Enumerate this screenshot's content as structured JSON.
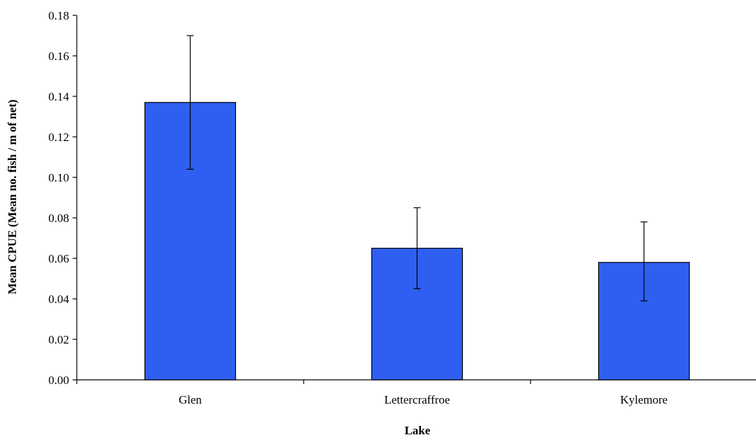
{
  "chart_data": {
    "type": "bar",
    "title": "",
    "xlabel": "Lake",
    "ylabel": "Mean CPUE (Mean no. fish / m of net)",
    "categories": [
      "Glen",
      "Lettercraffroe",
      "Kylemore"
    ],
    "values": [
      0.137,
      0.065,
      0.058
    ],
    "error_low": [
      0.104,
      0.045,
      0.039
    ],
    "error_high": [
      0.17,
      0.085,
      0.078
    ],
    "ylim": [
      0,
      0.18
    ],
    "yticks": [
      "0.00",
      "0.02",
      "0.04",
      "0.06",
      "0.08",
      "0.10",
      "0.12",
      "0.14",
      "0.16",
      "0.18"
    ],
    "grid": false,
    "bar_color": "#2f5ff0"
  }
}
